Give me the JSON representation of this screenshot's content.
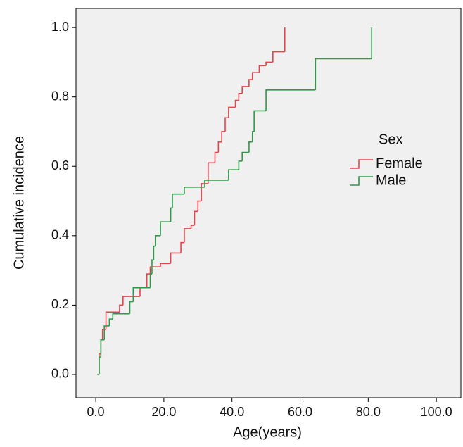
{
  "chart_data": {
    "type": "step",
    "x_label": "Age(years)",
    "y_label": "Cumulative incidence",
    "legend_title": "Sex",
    "legend": "right",
    "xlim": [
      -5.8,
      107.2
    ],
    "ylim": [
      -0.067,
      1.055
    ],
    "xticks": [
      {
        "value": 0,
        "label": "0.0"
      },
      {
        "value": 20,
        "label": "20.0"
      },
      {
        "value": 40,
        "label": "40.0"
      },
      {
        "value": 60,
        "label": "60.0"
      },
      {
        "value": 80,
        "label": "80.0"
      },
      {
        "value": 100,
        "label": "100.0"
      }
    ],
    "yticks": [
      {
        "value": 0,
        "label": "0.0"
      },
      0.2,
      0.4,
      0.6,
      0.8,
      {
        "value": 1,
        "label": "1.0"
      }
    ],
    "series": [
      {
        "name": "Female",
        "color": "#e8434b",
        "x": [
          0.5,
          1,
          1.5,
          2,
          3,
          7,
          8,
          13,
          15,
          16,
          19,
          22,
          25,
          26,
          28,
          29,
          30,
          31,
          33,
          35,
          36,
          37,
          38,
          39,
          41,
          42,
          43,
          45,
          46,
          48,
          50,
          52,
          55.5
        ],
        "values": [
          0,
          0.06,
          0.1,
          0.13,
          0.18,
          0.2,
          0.225,
          0.25,
          0.29,
          0.31,
          0.32,
          0.35,
          0.38,
          0.42,
          0.43,
          0.47,
          0.5,
          0.55,
          0.61,
          0.64,
          0.67,
          0.7,
          0.74,
          0.77,
          0.79,
          0.81,
          0.83,
          0.85,
          0.87,
          0.89,
          0.9,
          0.93,
          1.0
        ]
      },
      {
        "name": "Male",
        "color": "#2e9a48",
        "x": [
          0.5,
          1,
          1.5,
          2.5,
          4,
          5,
          10,
          11,
          16,
          16.5,
          17,
          17.5,
          19,
          22,
          22.5,
          26,
          32,
          39,
          42,
          43,
          45,
          46,
          46.5,
          50,
          64.5,
          81
        ],
        "values": [
          0,
          0.05,
          0.1,
          0.14,
          0.16,
          0.175,
          0.21,
          0.25,
          0.29,
          0.33,
          0.37,
          0.4,
          0.44,
          0.48,
          0.52,
          0.54,
          0.56,
          0.59,
          0.615,
          0.64,
          0.67,
          0.7,
          0.76,
          0.82,
          0.91,
          1.0
        ]
      }
    ]
  }
}
